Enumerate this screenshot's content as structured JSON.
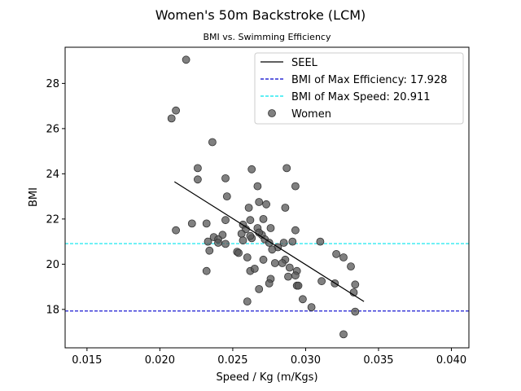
{
  "chart_data": {
    "type": "scatter",
    "title": "Women's 50m Backstroke (LCM)",
    "subtitle": "BMI vs. Swimming Efficiency",
    "xlabel": "Speed / Kg (m/Kgs)",
    "ylabel": "BMI",
    "xlim": [
      0.0135,
      0.0412
    ],
    "ylim": [
      16.3,
      29.6
    ],
    "xticks": [
      "0.015",
      "0.020",
      "0.025",
      "0.030",
      "0.035",
      "0.040"
    ],
    "yticks": [
      "18",
      "20",
      "22",
      "24",
      "26",
      "28"
    ],
    "legend_position": "top-right",
    "grid": false,
    "colors": {
      "points": "#555555",
      "seel": "#000000",
      "max_efficiency": "#0000cc",
      "max_speed": "#00e5ee"
    },
    "series": [
      {
        "name": "SEEL",
        "kind": "line",
        "x": [
          0.021,
          0.034
        ],
        "y": [
          23.65,
          18.35
        ]
      },
      {
        "name": "BMI of Max Efficiency: 17.928",
        "kind": "hline",
        "y": 17.928
      },
      {
        "name": "BMI of Max Speed: 20.911",
        "kind": "hline",
        "y": 20.911
      },
      {
        "name": "Women",
        "kind": "scatter",
        "points": [
          [
            0.0218,
            29.05
          ],
          [
            0.0211,
            26.8
          ],
          [
            0.0208,
            26.45
          ],
          [
            0.0236,
            25.4
          ],
          [
            0.0226,
            24.25
          ],
          [
            0.0226,
            23.75
          ],
          [
            0.0245,
            23.8
          ],
          [
            0.0263,
            24.2
          ],
          [
            0.0287,
            24.25
          ],
          [
            0.0267,
            23.45
          ],
          [
            0.0293,
            23.45
          ],
          [
            0.0246,
            23.0
          ],
          [
            0.0268,
            22.75
          ],
          [
            0.0273,
            22.65
          ],
          [
            0.0261,
            22.5
          ],
          [
            0.0286,
            22.5
          ],
          [
            0.0222,
            21.8
          ],
          [
            0.0232,
            21.8
          ],
          [
            0.0245,
            21.95
          ],
          [
            0.0257,
            21.75
          ],
          [
            0.0262,
            21.95
          ],
          [
            0.0271,
            22.0
          ],
          [
            0.0211,
            21.5
          ],
          [
            0.0259,
            21.55
          ],
          [
            0.0267,
            21.6
          ],
          [
            0.0276,
            21.6
          ],
          [
            0.0293,
            21.5
          ],
          [
            0.0256,
            21.35
          ],
          [
            0.0263,
            21.15
          ],
          [
            0.027,
            21.3
          ],
          [
            0.0272,
            21.1
          ],
          [
            0.0243,
            21.3
          ],
          [
            0.0237,
            21.2
          ],
          [
            0.024,
            21.1
          ],
          [
            0.0233,
            21.0
          ],
          [
            0.024,
            20.95
          ],
          [
            0.0245,
            20.9
          ],
          [
            0.0257,
            21.05
          ],
          [
            0.0262,
            21.25
          ],
          [
            0.0268,
            21.4
          ],
          [
            0.0275,
            20.95
          ],
          [
            0.0281,
            20.75
          ],
          [
            0.0285,
            20.95
          ],
          [
            0.0291,
            21.0
          ],
          [
            0.031,
            21.0
          ],
          [
            0.0234,
            20.6
          ],
          [
            0.0253,
            20.55
          ],
          [
            0.0254,
            20.5
          ],
          [
            0.0277,
            20.65
          ],
          [
            0.026,
            20.3
          ],
          [
            0.0271,
            20.2
          ],
          [
            0.0286,
            20.2
          ],
          [
            0.0279,
            20.05
          ],
          [
            0.0284,
            20.05
          ],
          [
            0.0232,
            19.7
          ],
          [
            0.0262,
            19.7
          ],
          [
            0.0265,
            19.8
          ],
          [
            0.0289,
            19.85
          ],
          [
            0.0294,
            19.7
          ],
          [
            0.0276,
            19.35
          ],
          [
            0.0288,
            19.45
          ],
          [
            0.0293,
            19.5
          ],
          [
            0.0275,
            19.15
          ],
          [
            0.0311,
            19.25
          ],
          [
            0.032,
            19.15
          ],
          [
            0.0321,
            20.45
          ],
          [
            0.0326,
            20.3
          ],
          [
            0.0331,
            19.9
          ],
          [
            0.0334,
            19.1
          ],
          [
            0.0333,
            18.75
          ],
          [
            0.0268,
            18.9
          ],
          [
            0.0294,
            19.05
          ],
          [
            0.0295,
            19.05
          ],
          [
            0.0298,
            18.45
          ],
          [
            0.026,
            18.35
          ],
          [
            0.0304,
            18.1
          ],
          [
            0.0334,
            17.9
          ],
          [
            0.0326,
            16.9
          ]
        ]
      }
    ]
  }
}
